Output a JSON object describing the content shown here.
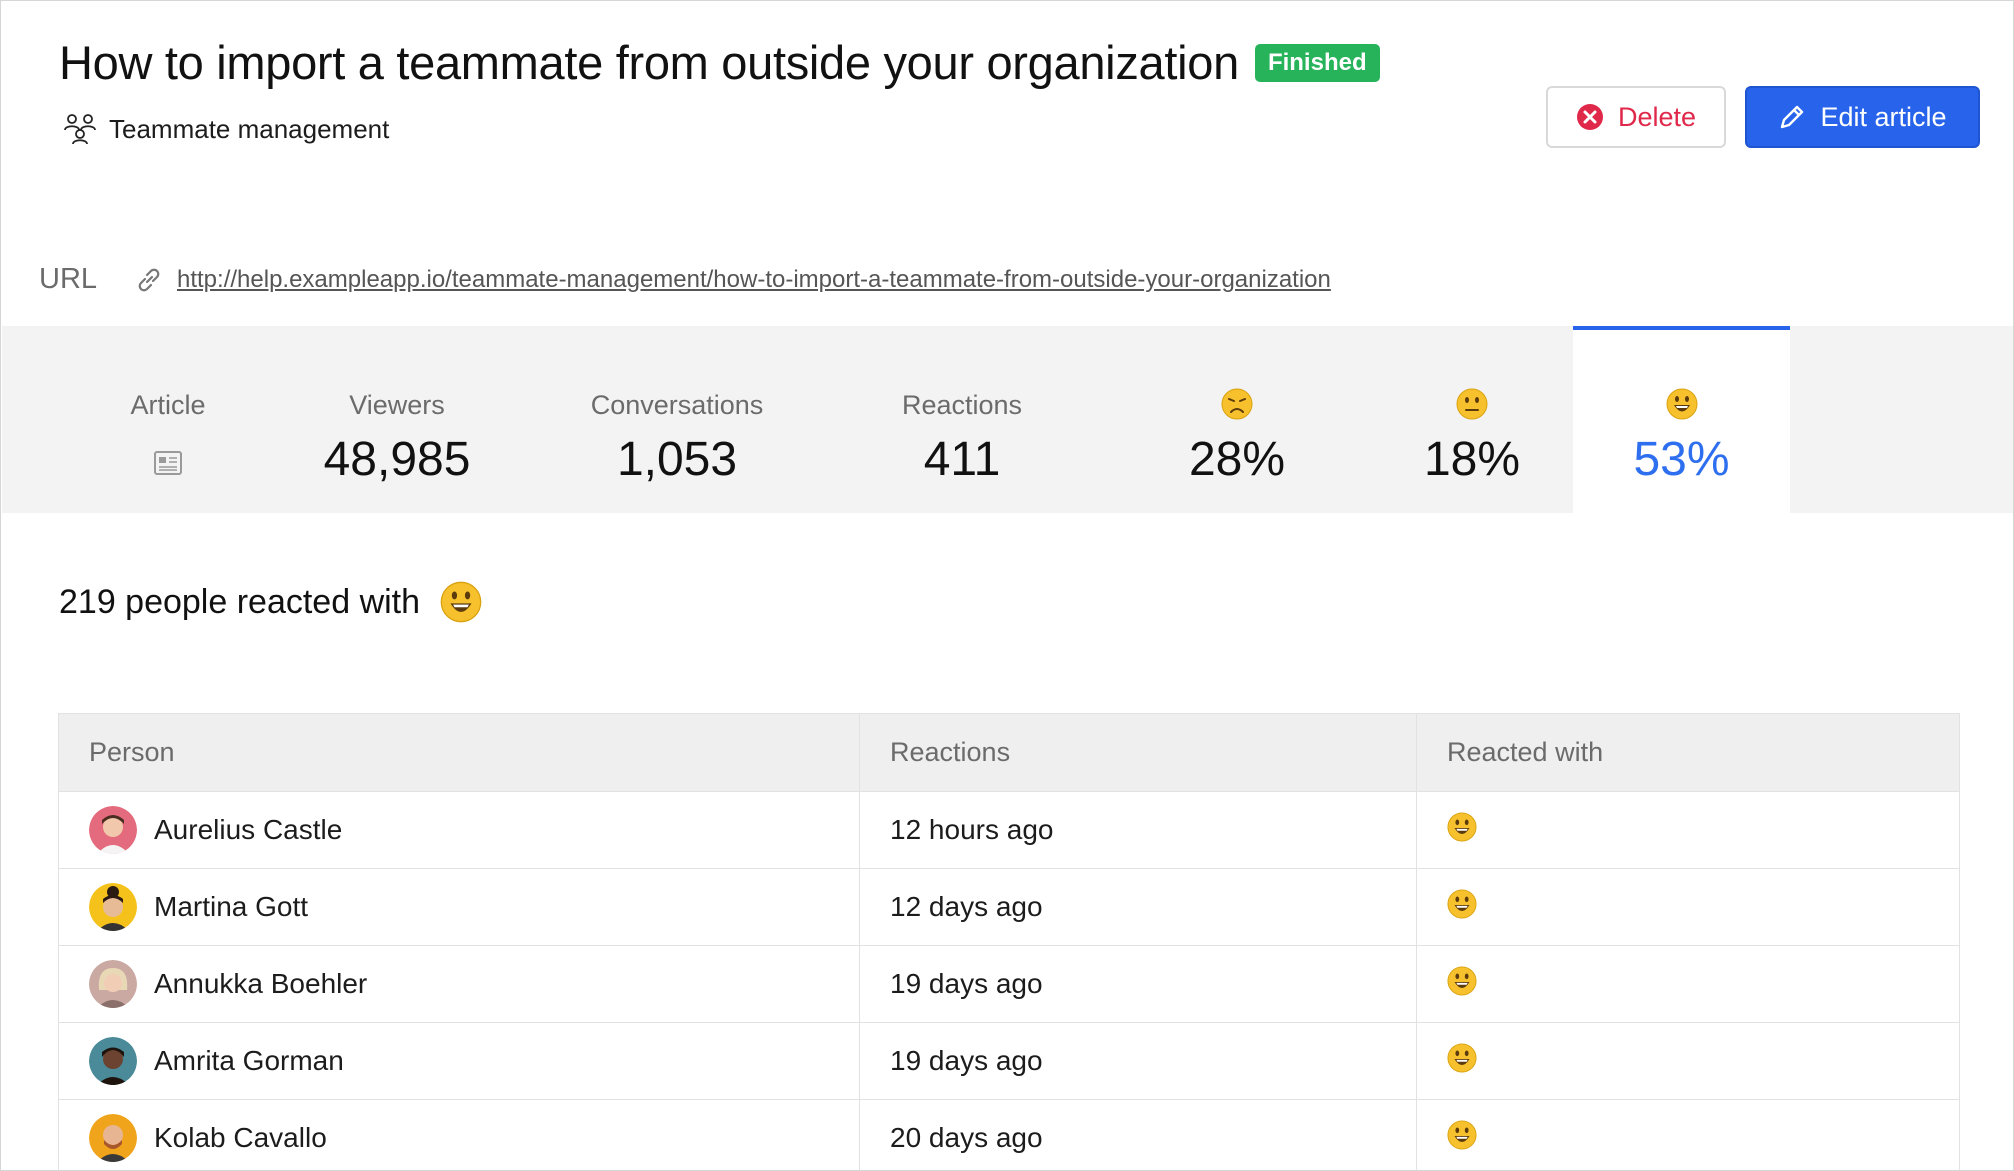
{
  "article": {
    "title": "How to import a teammate from outside your organization",
    "status_badge": "Finished",
    "category": "Teammate management",
    "url_label": "URL",
    "url": "http://help.exampleapp.io/teammate-management/how-to-import-a-teammate-from-outside-your-organization"
  },
  "actions": {
    "delete_label": "Delete",
    "edit_label": "Edit article"
  },
  "stats": {
    "article_label": "Article",
    "viewers_label": "Viewers",
    "viewers_value": "48,985",
    "conversations_label": "Conversations",
    "conversations_value": "1,053",
    "reactions_label": "Reactions",
    "reactions_value": "411",
    "sad_value": "28%",
    "neutral_value": "18%",
    "happy_value": "53%",
    "selected": "happy"
  },
  "reactions_heading": "219 people reacted with",
  "table": {
    "headers": [
      "Person",
      "Reactions",
      "Reacted with"
    ],
    "rows": [
      {
        "person": "Aurelius Castle",
        "time": "12 hours ago",
        "reaction": "smiley-icon"
      },
      {
        "person": "Martina Gott",
        "time": "12 days ago",
        "reaction": "smiley-icon"
      },
      {
        "person": "Annukka Boehler",
        "time": "19 days ago",
        "reaction": "smiley-icon"
      },
      {
        "person": "Amrita Gorman",
        "time": "19 days ago",
        "reaction": "smiley-icon"
      },
      {
        "person": "Kolab Cavallo",
        "time": "20 days ago",
        "reaction": "smiley-icon"
      }
    ]
  },
  "colors": {
    "accent": "#2764eb",
    "status_green": "#26b35a",
    "danger": "#e0284a",
    "stats_bg": "#f3f3f3"
  }
}
